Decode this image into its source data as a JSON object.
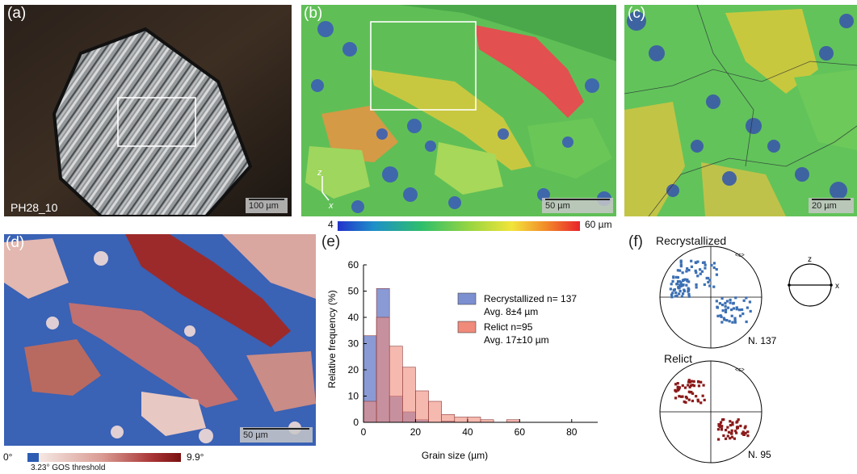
{
  "panels": {
    "a": {
      "label": "(a)",
      "sample": "PH28_10",
      "scale": "100 µm"
    },
    "b": {
      "label": "(b)",
      "scale": "50 µm",
      "axis_z": "z",
      "axis_x": "x"
    },
    "c": {
      "label": "(c)",
      "scale": "20 µm"
    },
    "d": {
      "label": "(d)",
      "scale": "50 µm"
    },
    "e": {
      "label": "(e)"
    },
    "f": {
      "label": "(f)"
    }
  },
  "colorbar_b": {
    "min": "4",
    "max": "60 µm"
  },
  "colorbar_d": {
    "min": "0°",
    "max": "9.9°",
    "threshold": "3.23° GOS threshold"
  },
  "colors": {
    "recrystallized_fill": "#7c8fd0",
    "relict_fill": "#f08a7a",
    "recrystallized_points": "#3b6fb3",
    "relict_points": "#8b1a1a"
  },
  "chart_data": {
    "type": "bar",
    "xlabel": "Grain size (µm)",
    "ylabel": "Relative frequency (%)",
    "xlim": [
      0,
      90
    ],
    "ylim": [
      0,
      60
    ],
    "xticks": [
      0,
      20,
      40,
      60,
      80
    ],
    "yticks": [
      0,
      10,
      20,
      30,
      40,
      50,
      60
    ],
    "bin_edges": [
      0,
      5,
      10,
      15,
      20,
      25,
      30,
      35,
      40,
      45,
      50,
      55,
      60
    ],
    "series": [
      {
        "name": "Recrystallized n= 137",
        "note": "Avg. 8±4 µm",
        "values": [
          33,
          51,
          10,
          4,
          1,
          0,
          0.5,
          0,
          0,
          0,
          0,
          0
        ]
      },
      {
        "name": "Relict n=95",
        "note": "Avg. 17±10 µm",
        "values": [
          8,
          40,
          29,
          21,
          12,
          8,
          3,
          2,
          2,
          1,
          0,
          1
        ]
      }
    ]
  },
  "pole_figures": {
    "header": "<c>",
    "axis_z": "z",
    "axis_x": "x",
    "recrystallized": {
      "title": "Recrystallized",
      "count": "N. 137"
    },
    "relict": {
      "title": "Relict",
      "count": "N. 95"
    }
  }
}
